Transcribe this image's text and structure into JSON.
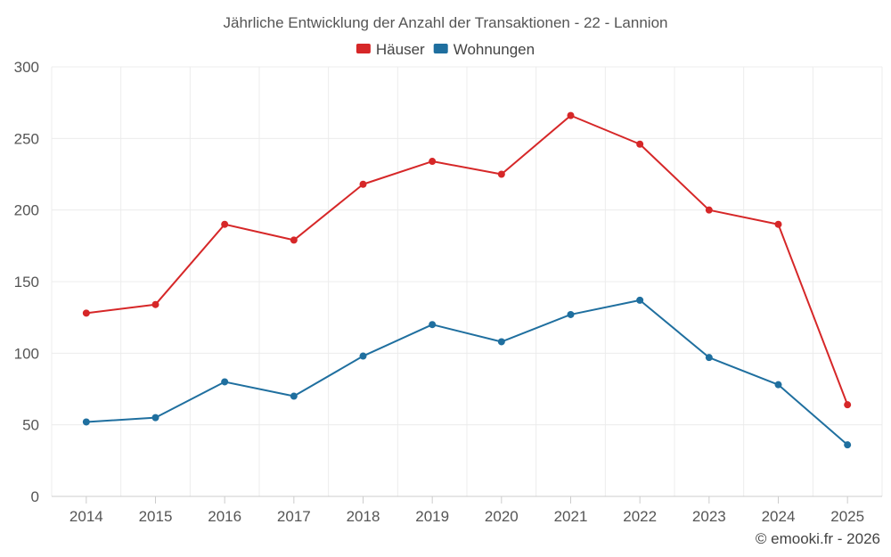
{
  "chart_data": {
    "type": "line",
    "title": "Jährliche Entwicklung der Anzahl der Transaktionen - 22 - Lannion",
    "xlabel": "",
    "ylabel": "",
    "categories": [
      "2014",
      "2015",
      "2016",
      "2017",
      "2018",
      "2019",
      "2020",
      "2021",
      "2022",
      "2023",
      "2024",
      "2025"
    ],
    "ylim": [
      0,
      300
    ],
    "yticks": [
      0,
      50,
      100,
      150,
      200,
      250,
      300
    ],
    "grid": true,
    "legend_position": "top-center",
    "series": [
      {
        "name": "Häuser",
        "color": "#d62728",
        "values": [
          128,
          134,
          190,
          179,
          218,
          234,
          225,
          266,
          246,
          200,
          190,
          64
        ]
      },
      {
        "name": "Wohnungen",
        "color": "#1f6f9f",
        "values": [
          52,
          55,
          80,
          70,
          98,
          120,
          108,
          127,
          137,
          97,
          78,
          36
        ]
      }
    ]
  },
  "credit": "© emooki.fr - 2026"
}
